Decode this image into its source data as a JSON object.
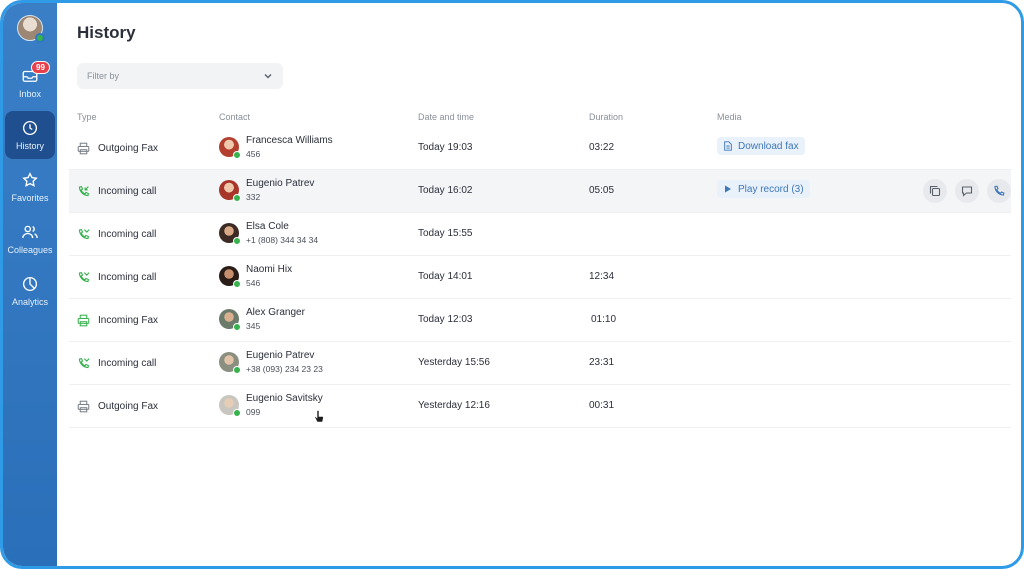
{
  "sidebar": {
    "user_status": "online",
    "items": [
      {
        "label": "Inbox",
        "icon": "inbox-icon",
        "badge": "99",
        "active": false
      },
      {
        "label": "History",
        "icon": "clock-icon",
        "active": true
      },
      {
        "label": "Favorites",
        "icon": "star-icon",
        "active": false
      },
      {
        "label": "Colleagues",
        "icon": "users-icon",
        "active": false
      },
      {
        "label": "Analytics",
        "icon": "pie-chart-icon",
        "active": false
      }
    ]
  },
  "page": {
    "title": "History"
  },
  "filter": {
    "placeholder": "Filter by"
  },
  "table": {
    "columns": [
      "Type",
      "Contact",
      "Date and time",
      "Duration",
      "Media"
    ],
    "rows": [
      {
        "type": "Outgoing Fax",
        "icon": "fax-icon",
        "name": "Francesca Williams",
        "number": "456",
        "date": "Today 19:03",
        "duration": "03:22",
        "media": "Download fax"
      },
      {
        "type": "Incoming call",
        "icon": "incoming-call-icon",
        "name": "Eugenio Patrev",
        "number": "332",
        "date": "Today 16:02",
        "duration": "05:05",
        "media": "Play record (3)"
      },
      {
        "type": "Incoming call",
        "icon": "missed-call-icon",
        "name": "Elsa Cole",
        "number": "+1 (808) 344 34 34",
        "date": "Today 15:55",
        "duration": "",
        "media": ""
      },
      {
        "type": "Incoming call",
        "icon": "missed-call-icon",
        "name": "Naomi Hix",
        "number": "546",
        "date": "Today 14:01",
        "duration": "12:34",
        "media": ""
      },
      {
        "type": "Incoming Fax",
        "icon": "fax-icon",
        "name": "Alex Granger",
        "number": "345",
        "date": "Today 12:03",
        "duration": "01:10",
        "media": ""
      },
      {
        "type": "Incoming call",
        "icon": "missed-call-icon",
        "name": "Eugenio Patrev",
        "number": "+38 (093) 234 23 23",
        "date": "Yesterday 15:56",
        "duration": "23:31",
        "media": ""
      },
      {
        "type": "Outgoing Fax",
        "icon": "fax-icon",
        "name": "Eugenio Savitsky",
        "number": "099",
        "date": "Yesterday 12:16",
        "duration": "00:31",
        "media": ""
      }
    ]
  },
  "colors": {
    "accent": "#2f78c1",
    "call_green": "#37b24d",
    "fax_grey": "#7b818a",
    "chip_text": "#3f78b8",
    "badge_red": "#e8404b"
  }
}
